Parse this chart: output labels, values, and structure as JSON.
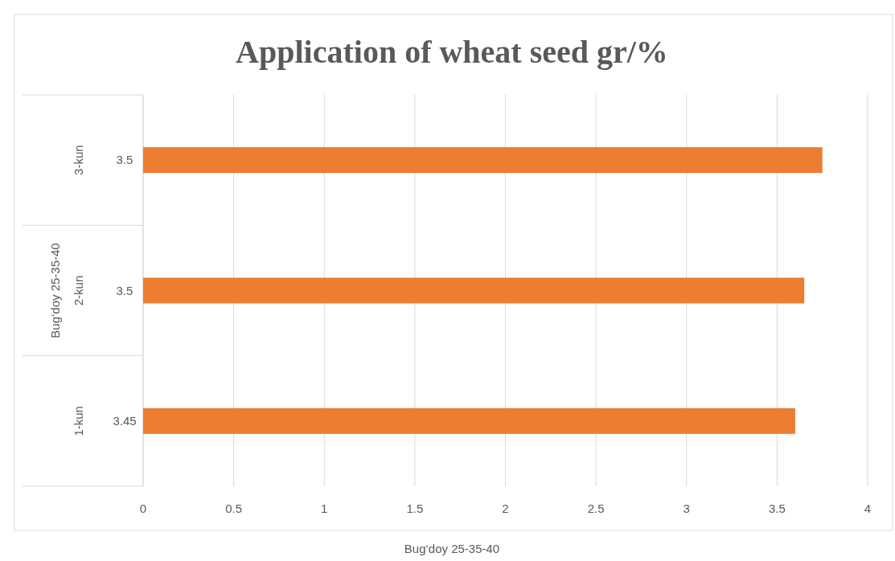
{
  "chart_data": {
    "type": "bar",
    "orientation": "horizontal",
    "title": "Application of wheat seed gr/%",
    "xlabel": "Bug‘doy 25-35-40",
    "ylabel": "Bug‘doy 25-35-40",
    "categories": [
      "3.5",
      "3.5",
      "3.45"
    ],
    "annotations": [
      "3-kun",
      "2-kun",
      "1-kun"
    ],
    "series": [
      {
        "color": "#ed7d31",
        "values": [
          3.75,
          3.65,
          3.6
        ]
      }
    ],
    "xlim": [
      0,
      4
    ],
    "xticks": [
      0,
      0.5,
      1,
      1.5,
      2,
      2.5,
      3,
      3.5,
      4
    ],
    "grid": "x"
  }
}
